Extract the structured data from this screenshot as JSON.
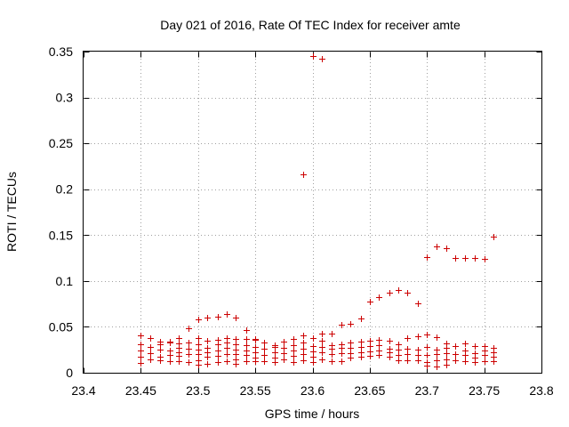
{
  "chart_data": {
    "type": "scatter",
    "title": "Day 021 of 2016, Rate Of TEC Index for receiver amte",
    "xlabel": "GPS time / hours",
    "ylabel": "ROTI / TECUs",
    "xlim": [
      23.4,
      23.8
    ],
    "ylim": [
      0,
      0.35
    ],
    "grid": true,
    "marker": "+",
    "color": "#cc0000",
    "xticks": [
      23.4,
      23.45,
      23.5,
      23.55,
      23.6,
      23.65,
      23.7,
      23.75,
      23.8
    ],
    "xtick_labels": [
      "23.4",
      "23.45",
      "23.5",
      "23.55",
      "23.6",
      "23.65",
      "23.7",
      "23.75",
      "23.8"
    ],
    "yticks": [
      0,
      0.05,
      0.1,
      0.15,
      0.2,
      0.25,
      0.3,
      0.35
    ],
    "ytick_labels": [
      "0",
      "0.05",
      "0.1",
      "0.15",
      "0.2",
      "0.25",
      "0.3",
      "0.35"
    ],
    "series": [
      {
        "name": "ROTI",
        "points": [
          [
            23.45,
            0.041
          ],
          [
            23.45,
            0.031
          ],
          [
            23.45,
            0.024
          ],
          [
            23.45,
            0.017
          ],
          [
            23.45,
            0.011
          ],
          [
            23.458,
            0.038
          ],
          [
            23.458,
            0.028
          ],
          [
            23.458,
            0.021
          ],
          [
            23.458,
            0.015
          ],
          [
            23.467,
            0.034
          ],
          [
            23.467,
            0.031
          ],
          [
            23.467,
            0.025
          ],
          [
            23.467,
            0.017
          ],
          [
            23.467,
            0.014
          ],
          [
            23.475,
            0.034
          ],
          [
            23.475,
            0.033
          ],
          [
            23.475,
            0.024
          ],
          [
            23.475,
            0.019
          ],
          [
            23.475,
            0.013
          ],
          [
            23.483,
            0.038
          ],
          [
            23.483,
            0.032
          ],
          [
            23.483,
            0.027
          ],
          [
            23.483,
            0.022
          ],
          [
            23.483,
            0.018
          ],
          [
            23.483,
            0.013
          ],
          [
            23.492,
            0.048
          ],
          [
            23.492,
            0.033
          ],
          [
            23.492,
            0.026
          ],
          [
            23.492,
            0.02
          ],
          [
            23.492,
            0.012
          ],
          [
            23.5,
            0.058
          ],
          [
            23.5,
            0.038
          ],
          [
            23.5,
            0.031
          ],
          [
            23.5,
            0.025
          ],
          [
            23.5,
            0.02
          ],
          [
            23.5,
            0.014
          ],
          [
            23.5,
            0.009
          ],
          [
            23.508,
            0.06
          ],
          [
            23.508,
            0.035
          ],
          [
            23.508,
            0.027
          ],
          [
            23.508,
            0.022
          ],
          [
            23.508,
            0.017
          ],
          [
            23.508,
            0.01
          ],
          [
            23.517,
            0.061
          ],
          [
            23.517,
            0.036
          ],
          [
            23.517,
            0.031
          ],
          [
            23.517,
            0.024
          ],
          [
            23.517,
            0.018
          ],
          [
            23.517,
            0.012
          ],
          [
            23.525,
            0.064
          ],
          [
            23.525,
            0.038
          ],
          [
            23.525,
            0.033
          ],
          [
            23.525,
            0.027
          ],
          [
            23.525,
            0.02
          ],
          [
            23.525,
            0.013
          ],
          [
            23.533,
            0.06
          ],
          [
            23.533,
            0.037
          ],
          [
            23.533,
            0.031
          ],
          [
            23.533,
            0.025
          ],
          [
            23.533,
            0.02
          ],
          [
            23.533,
            0.015
          ],
          [
            23.533,
            0.01
          ],
          [
            23.542,
            0.047
          ],
          [
            23.542,
            0.037
          ],
          [
            23.542,
            0.03
          ],
          [
            23.542,
            0.024
          ],
          [
            23.542,
            0.019
          ],
          [
            23.542,
            0.013
          ],
          [
            23.55,
            0.037
          ],
          [
            23.55,
            0.036
          ],
          [
            23.55,
            0.028
          ],
          [
            23.55,
            0.022
          ],
          [
            23.55,
            0.016
          ],
          [
            23.55,
            0.013
          ],
          [
            23.558,
            0.033
          ],
          [
            23.558,
            0.026
          ],
          [
            23.558,
            0.019
          ],
          [
            23.558,
            0.013
          ],
          [
            23.567,
            0.03
          ],
          [
            23.567,
            0.028
          ],
          [
            23.567,
            0.022
          ],
          [
            23.567,
            0.016
          ],
          [
            23.567,
            0.012
          ],
          [
            23.575,
            0.034
          ],
          [
            23.575,
            0.027
          ],
          [
            23.575,
            0.021
          ],
          [
            23.575,
            0.015
          ],
          [
            23.583,
            0.037
          ],
          [
            23.583,
            0.03
          ],
          [
            23.583,
            0.024
          ],
          [
            23.583,
            0.018
          ],
          [
            23.583,
            0.012
          ],
          [
            23.592,
            0.216
          ],
          [
            23.592,
            0.041
          ],
          [
            23.592,
            0.033
          ],
          [
            23.592,
            0.026
          ],
          [
            23.592,
            0.02
          ],
          [
            23.592,
            0.014
          ],
          [
            23.6,
            0.345
          ],
          [
            23.6,
            0.038
          ],
          [
            23.6,
            0.029
          ],
          [
            23.6,
            0.023
          ],
          [
            23.6,
            0.017
          ],
          [
            23.6,
            0.012
          ],
          [
            23.608,
            0.342
          ],
          [
            23.608,
            0.043
          ],
          [
            23.608,
            0.035
          ],
          [
            23.608,
            0.028
          ],
          [
            23.608,
            0.022
          ],
          [
            23.608,
            0.015
          ],
          [
            23.617,
            0.043
          ],
          [
            23.617,
            0.03
          ],
          [
            23.617,
            0.026
          ],
          [
            23.617,
            0.02
          ],
          [
            23.617,
            0.013
          ],
          [
            23.625,
            0.052
          ],
          [
            23.625,
            0.031
          ],
          [
            23.625,
            0.027
          ],
          [
            23.625,
            0.021
          ],
          [
            23.625,
            0.013
          ],
          [
            23.633,
            0.053
          ],
          [
            23.633,
            0.033
          ],
          [
            23.633,
            0.027
          ],
          [
            23.633,
            0.021
          ],
          [
            23.633,
            0.016
          ],
          [
            23.642,
            0.059
          ],
          [
            23.642,
            0.034
          ],
          [
            23.642,
            0.028
          ],
          [
            23.642,
            0.022
          ],
          [
            23.642,
            0.017
          ],
          [
            23.65,
            0.078
          ],
          [
            23.65,
            0.035
          ],
          [
            23.65,
            0.029
          ],
          [
            23.65,
            0.023
          ],
          [
            23.65,
            0.018
          ],
          [
            23.658,
            0.082
          ],
          [
            23.658,
            0.036
          ],
          [
            23.658,
            0.03
          ],
          [
            23.658,
            0.024
          ],
          [
            23.658,
            0.019
          ],
          [
            23.667,
            0.087
          ],
          [
            23.667,
            0.035
          ],
          [
            23.667,
            0.026
          ],
          [
            23.667,
            0.022
          ],
          [
            23.667,
            0.017
          ],
          [
            23.675,
            0.09
          ],
          [
            23.675,
            0.031
          ],
          [
            23.675,
            0.025
          ],
          [
            23.675,
            0.019
          ],
          [
            23.675,
            0.014
          ],
          [
            23.683,
            0.087
          ],
          [
            23.683,
            0.038
          ],
          [
            23.683,
            0.026
          ],
          [
            23.683,
            0.02
          ],
          [
            23.683,
            0.014
          ],
          [
            23.692,
            0.076
          ],
          [
            23.692,
            0.04
          ],
          [
            23.692,
            0.025
          ],
          [
            23.692,
            0.019
          ],
          [
            23.692,
            0.014
          ],
          [
            23.7,
            0.126
          ],
          [
            23.7,
            0.042
          ],
          [
            23.7,
            0.028
          ],
          [
            23.7,
            0.019
          ],
          [
            23.7,
            0.012
          ],
          [
            23.7,
            0.008
          ],
          [
            23.708,
            0.138
          ],
          [
            23.708,
            0.039
          ],
          [
            23.708,
            0.025
          ],
          [
            23.708,
            0.02
          ],
          [
            23.708,
            0.014
          ],
          [
            23.708,
            0.007
          ],
          [
            23.717,
            0.136
          ],
          [
            23.717,
            0.032
          ],
          [
            23.717,
            0.027
          ],
          [
            23.717,
            0.021
          ],
          [
            23.717,
            0.015
          ],
          [
            23.717,
            0.009
          ],
          [
            23.725,
            0.125
          ],
          [
            23.725,
            0.029
          ],
          [
            23.725,
            0.02
          ],
          [
            23.725,
            0.014
          ],
          [
            23.733,
            0.125
          ],
          [
            23.733,
            0.032
          ],
          [
            23.733,
            0.024
          ],
          [
            23.733,
            0.019
          ],
          [
            23.733,
            0.013
          ],
          [
            23.742,
            0.125
          ],
          [
            23.742,
            0.029
          ],
          [
            23.742,
            0.021
          ],
          [
            23.742,
            0.016
          ],
          [
            23.742,
            0.012
          ],
          [
            23.75,
            0.124
          ],
          [
            23.75,
            0.029
          ],
          [
            23.75,
            0.024
          ],
          [
            23.75,
            0.019
          ],
          [
            23.75,
            0.013
          ],
          [
            23.758,
            0.148
          ],
          [
            23.758,
            0.027
          ],
          [
            23.758,
            0.022
          ],
          [
            23.758,
            0.017
          ],
          [
            23.758,
            0.013
          ]
        ]
      }
    ]
  }
}
